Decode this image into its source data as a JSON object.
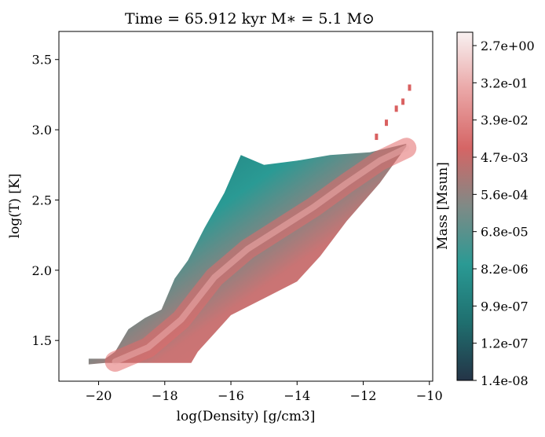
{
  "chart_data": {
    "type": "heatmap",
    "title": "Time = 65.912 kyr    M$_*$ = 5.1 M$_\\odot$",
    "title_display": "Time = 65.912 kyr    M∗ = 5.1 M⊙",
    "xlabel": "log(Density) [g/cm3]",
    "ylabel": "log(T) [K]",
    "xlim": [
      -21.2,
      -9.9
    ],
    "ylim": [
      1.21,
      3.7
    ],
    "xticks": [
      -20,
      -18,
      -16,
      -14,
      -12,
      -10
    ],
    "xtick_labels": [
      "−20",
      "−18",
      "−16",
      "−14",
      "−12",
      "−10"
    ],
    "yticks": [
      1.5,
      2.0,
      2.5,
      3.0,
      3.5
    ],
    "ytick_labels": [
      "1.5",
      "2.0",
      "2.5",
      "3.0",
      "3.5"
    ],
    "grid": false,
    "colorbar": {
      "label": "Mass [Msun]",
      "scale": "log",
      "tick_labels": [
        "1.4e-08",
        "1.2e-07",
        "9.9e-07",
        "8.2e-06",
        "6.8e-05",
        "5.6e-04",
        "4.7e-03",
        "3.9e-02",
        "3.2e-01",
        "2.7e+00"
      ],
      "colors": [
        "#243447",
        "#1f6f6f",
        "#2a9a94",
        "#7f8a86",
        "#d56565",
        "#eaa6a6",
        "#f8f1f1"
      ]
    },
    "distribution": {
      "description_points_lower_edge": [
        [
          -20.3,
          1.33
        ],
        [
          -19.8,
          1.34
        ],
        [
          -17.2,
          1.34
        ],
        [
          -17.0,
          1.42
        ],
        [
          -16.5,
          1.55
        ],
        [
          -16.0,
          1.68
        ],
        [
          -15.0,
          1.8
        ],
        [
          -14.0,
          1.92
        ],
        [
          -13.3,
          2.1
        ],
        [
          -12.5,
          2.35
        ],
        [
          -11.5,
          2.62
        ],
        [
          -10.7,
          2.88
        ]
      ],
      "upper_edge": [
        [
          -20.3,
          1.37
        ],
        [
          -19.8,
          1.37
        ],
        [
          -19.5,
          1.42
        ],
        [
          -19.1,
          1.58
        ],
        [
          -18.6,
          1.66
        ],
        [
          -18.1,
          1.72
        ],
        [
          -17.7,
          1.94
        ],
        [
          -17.3,
          2.07
        ],
        [
          -16.8,
          2.3
        ],
        [
          -16.2,
          2.55
        ],
        [
          -15.7,
          2.82
        ],
        [
          -15.0,
          2.75
        ],
        [
          -14.0,
          2.78
        ],
        [
          -13.0,
          2.82
        ],
        [
          -11.8,
          2.84
        ],
        [
          -10.7,
          2.9
        ]
      ],
      "ridge_high_mass": [
        [
          -19.5,
          1.35
        ],
        [
          -18.5,
          1.45
        ],
        [
          -17.5,
          1.65
        ],
        [
          -16.5,
          1.95
        ],
        [
          -15.5,
          2.15
        ],
        [
          -14.5,
          2.3
        ],
        [
          -13.5,
          2.45
        ],
        [
          -12.5,
          2.62
        ],
        [
          -11.5,
          2.78
        ],
        [
          -10.7,
          2.87
        ]
      ],
      "outliers": [
        [
          -10.6,
          3.3
        ],
        [
          -10.8,
          3.2
        ],
        [
          -11.0,
          3.15
        ],
        [
          -11.3,
          3.05
        ],
        [
          -11.6,
          2.95
        ]
      ]
    }
  }
}
